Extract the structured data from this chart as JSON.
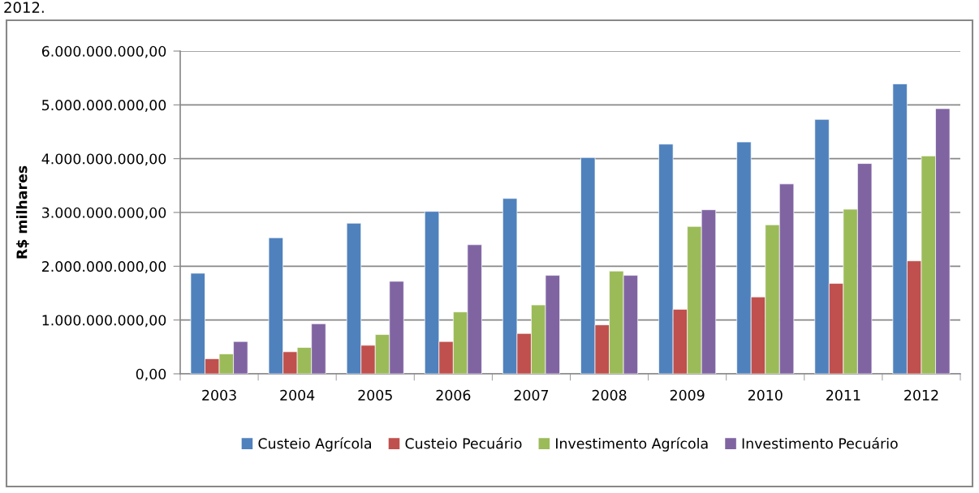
{
  "chart_data": {
    "type": "bar",
    "ylabel": "R$ milhares",
    "annotations": [
      "2012."
    ],
    "categories": [
      "2003",
      "2004",
      "2005",
      "2006",
      "2007",
      "2008",
      "2009",
      "2010",
      "2011",
      "2012"
    ],
    "series": [
      {
        "name": "Custeio Agrícola",
        "color": "#4f81bd",
        "values": [
          1870000000,
          2530000000,
          2800000000,
          3020000000,
          3260000000,
          4020000000,
          4270000000,
          4310000000,
          4730000000,
          5390000000
        ]
      },
      {
        "name": "Custeio Pecuário",
        "color": "#c0504d",
        "values": [
          280000000,
          410000000,
          530000000,
          600000000,
          750000000,
          910000000,
          1200000000,
          1430000000,
          1680000000,
          2100000000
        ]
      },
      {
        "name": "Investimento Agrícola",
        "color": "#9bbb59",
        "values": [
          370000000,
          490000000,
          730000000,
          1150000000,
          1280000000,
          1910000000,
          2740000000,
          2770000000,
          3060000000,
          4050000000
        ]
      },
      {
        "name": "Investimento Pecuário",
        "color": "#8064a2",
        "values": [
          600000000,
          930000000,
          1720000000,
          2400000000,
          1830000000,
          1830000000,
          3050000000,
          3530000000,
          3910000000,
          4930000000
        ]
      }
    ],
    "ylim": [
      0,
      6000000000
    ],
    "yticks": [
      {
        "value": 0,
        "label": "0,00"
      },
      {
        "value": 1000000000,
        "label": "1.000.000.000,00"
      },
      {
        "value": 2000000000,
        "label": "2.000.000.000,00"
      },
      {
        "value": 3000000000,
        "label": "3.000.000.000,00"
      },
      {
        "value": 4000000000,
        "label": "4.000.000.000,00"
      },
      {
        "value": 5000000000,
        "label": "5.000.000.000,00"
      },
      {
        "value": 6000000000,
        "label": "6.000.000.000,00"
      }
    ],
    "grid": "y",
    "legend": "bottom"
  }
}
